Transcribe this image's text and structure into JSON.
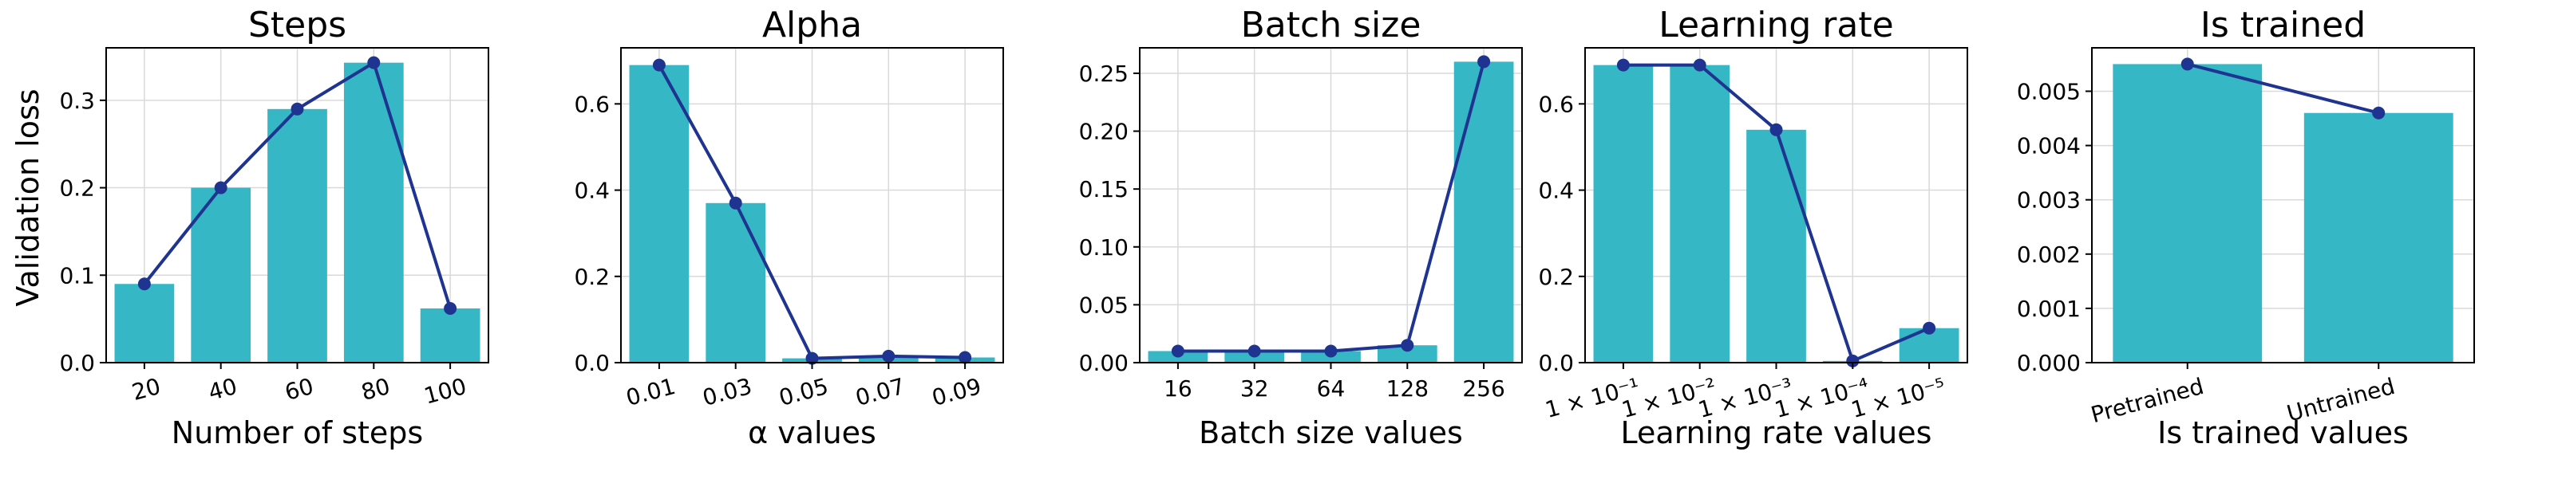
{
  "figure": {
    "ylabel": "Validation loss",
    "bar_color": "#35b7c5",
    "line_color": "#1f3490"
  },
  "chart_data": [
    {
      "type": "bar",
      "title": "Steps",
      "xlabel": "Number of steps",
      "ylabel": "Validation loss",
      "categories": [
        "20",
        "40",
        "60",
        "80",
        "100"
      ],
      "values": [
        0.09,
        0.2,
        0.29,
        0.343,
        0.062
      ],
      "line_overlay": true,
      "ylim": [
        0,
        0.36
      ],
      "yticks": [
        "0.0",
        "0.1",
        "0.2",
        "0.3"
      ],
      "ytick_values": [
        0,
        0.1,
        0.2,
        0.3
      ],
      "grid": true
    },
    {
      "type": "bar",
      "title": "Alpha",
      "xlabel": "α values",
      "categories": [
        "0.01",
        "0.03",
        "0.05",
        "0.07",
        "0.09"
      ],
      "values": [
        0.69,
        0.37,
        0.01,
        0.015,
        0.012
      ],
      "line_overlay": true,
      "ylim": [
        0,
        0.73
      ],
      "yticks": [
        "0.0",
        "0.2",
        "0.4",
        "0.6"
      ],
      "ytick_values": [
        0,
        0.2,
        0.4,
        0.6
      ],
      "grid": true
    },
    {
      "type": "bar",
      "title": "Batch size",
      "xlabel": "Batch size values",
      "categories": [
        "16",
        "32",
        "64",
        "128",
        "256"
      ],
      "values": [
        0.01,
        0.01,
        0.01,
        0.015,
        0.26
      ],
      "line_overlay": true,
      "ylim": [
        0,
        0.272
      ],
      "yticks": [
        "0.00",
        "0.05",
        "0.10",
        "0.15",
        "0.20",
        "0.25"
      ],
      "ytick_values": [
        0,
        0.05,
        0.1,
        0.15,
        0.2,
        0.25
      ],
      "grid": true
    },
    {
      "type": "bar",
      "title": "Learning rate",
      "xlabel": "Learning rate values",
      "categories": [
        "1 × 10⁻¹",
        "1 × 10⁻²",
        "1 × 10⁻³",
        "1 × 10⁻⁴",
        "1 × 10⁻⁵"
      ],
      "values": [
        0.69,
        0.69,
        0.54,
        0.004,
        0.08
      ],
      "line_overlay": true,
      "ylim": [
        0,
        0.73
      ],
      "yticks": [
        "0.0",
        "0.2",
        "0.4",
        "0.6"
      ],
      "ytick_values": [
        0,
        0.2,
        0.4,
        0.6
      ],
      "grid": true
    },
    {
      "type": "bar",
      "title": "Is trained",
      "xlabel": "Is trained values",
      "categories": [
        "Pretrained",
        "Untrained"
      ],
      "values": [
        0.0055,
        0.0046
      ],
      "line_overlay": true,
      "ylim": [
        0,
        0.0058
      ],
      "yticks": [
        "0.000",
        "0.001",
        "0.002",
        "0.003",
        "0.004",
        "0.005"
      ],
      "ytick_values": [
        0,
        0.001,
        0.002,
        0.003,
        0.004,
        0.005
      ],
      "grid": true
    }
  ]
}
